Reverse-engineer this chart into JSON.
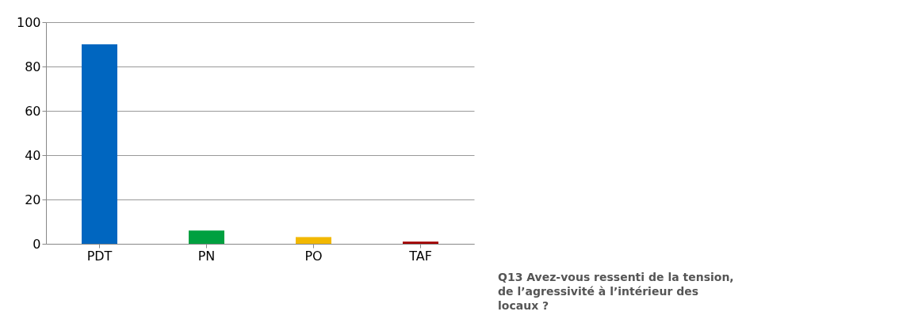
{
  "chart_data": {
    "type": "bar",
    "categories": [
      "PDT",
      "PN",
      "PO",
      "TAF"
    ],
    "values": [
      90,
      6,
      3,
      1
    ],
    "colors": [
      "#0066c0",
      "#00a040",
      "#f2b800",
      "#a00000"
    ],
    "ylim": [
      0,
      100
    ],
    "yticks": [
      0,
      20,
      40,
      60,
      80,
      100
    ],
    "grid": "y",
    "annotations": [
      "Q13 Avez-vous ressenti de la tension, de l’agressivité à l’intérieur des locaux ?"
    ]
  }
}
